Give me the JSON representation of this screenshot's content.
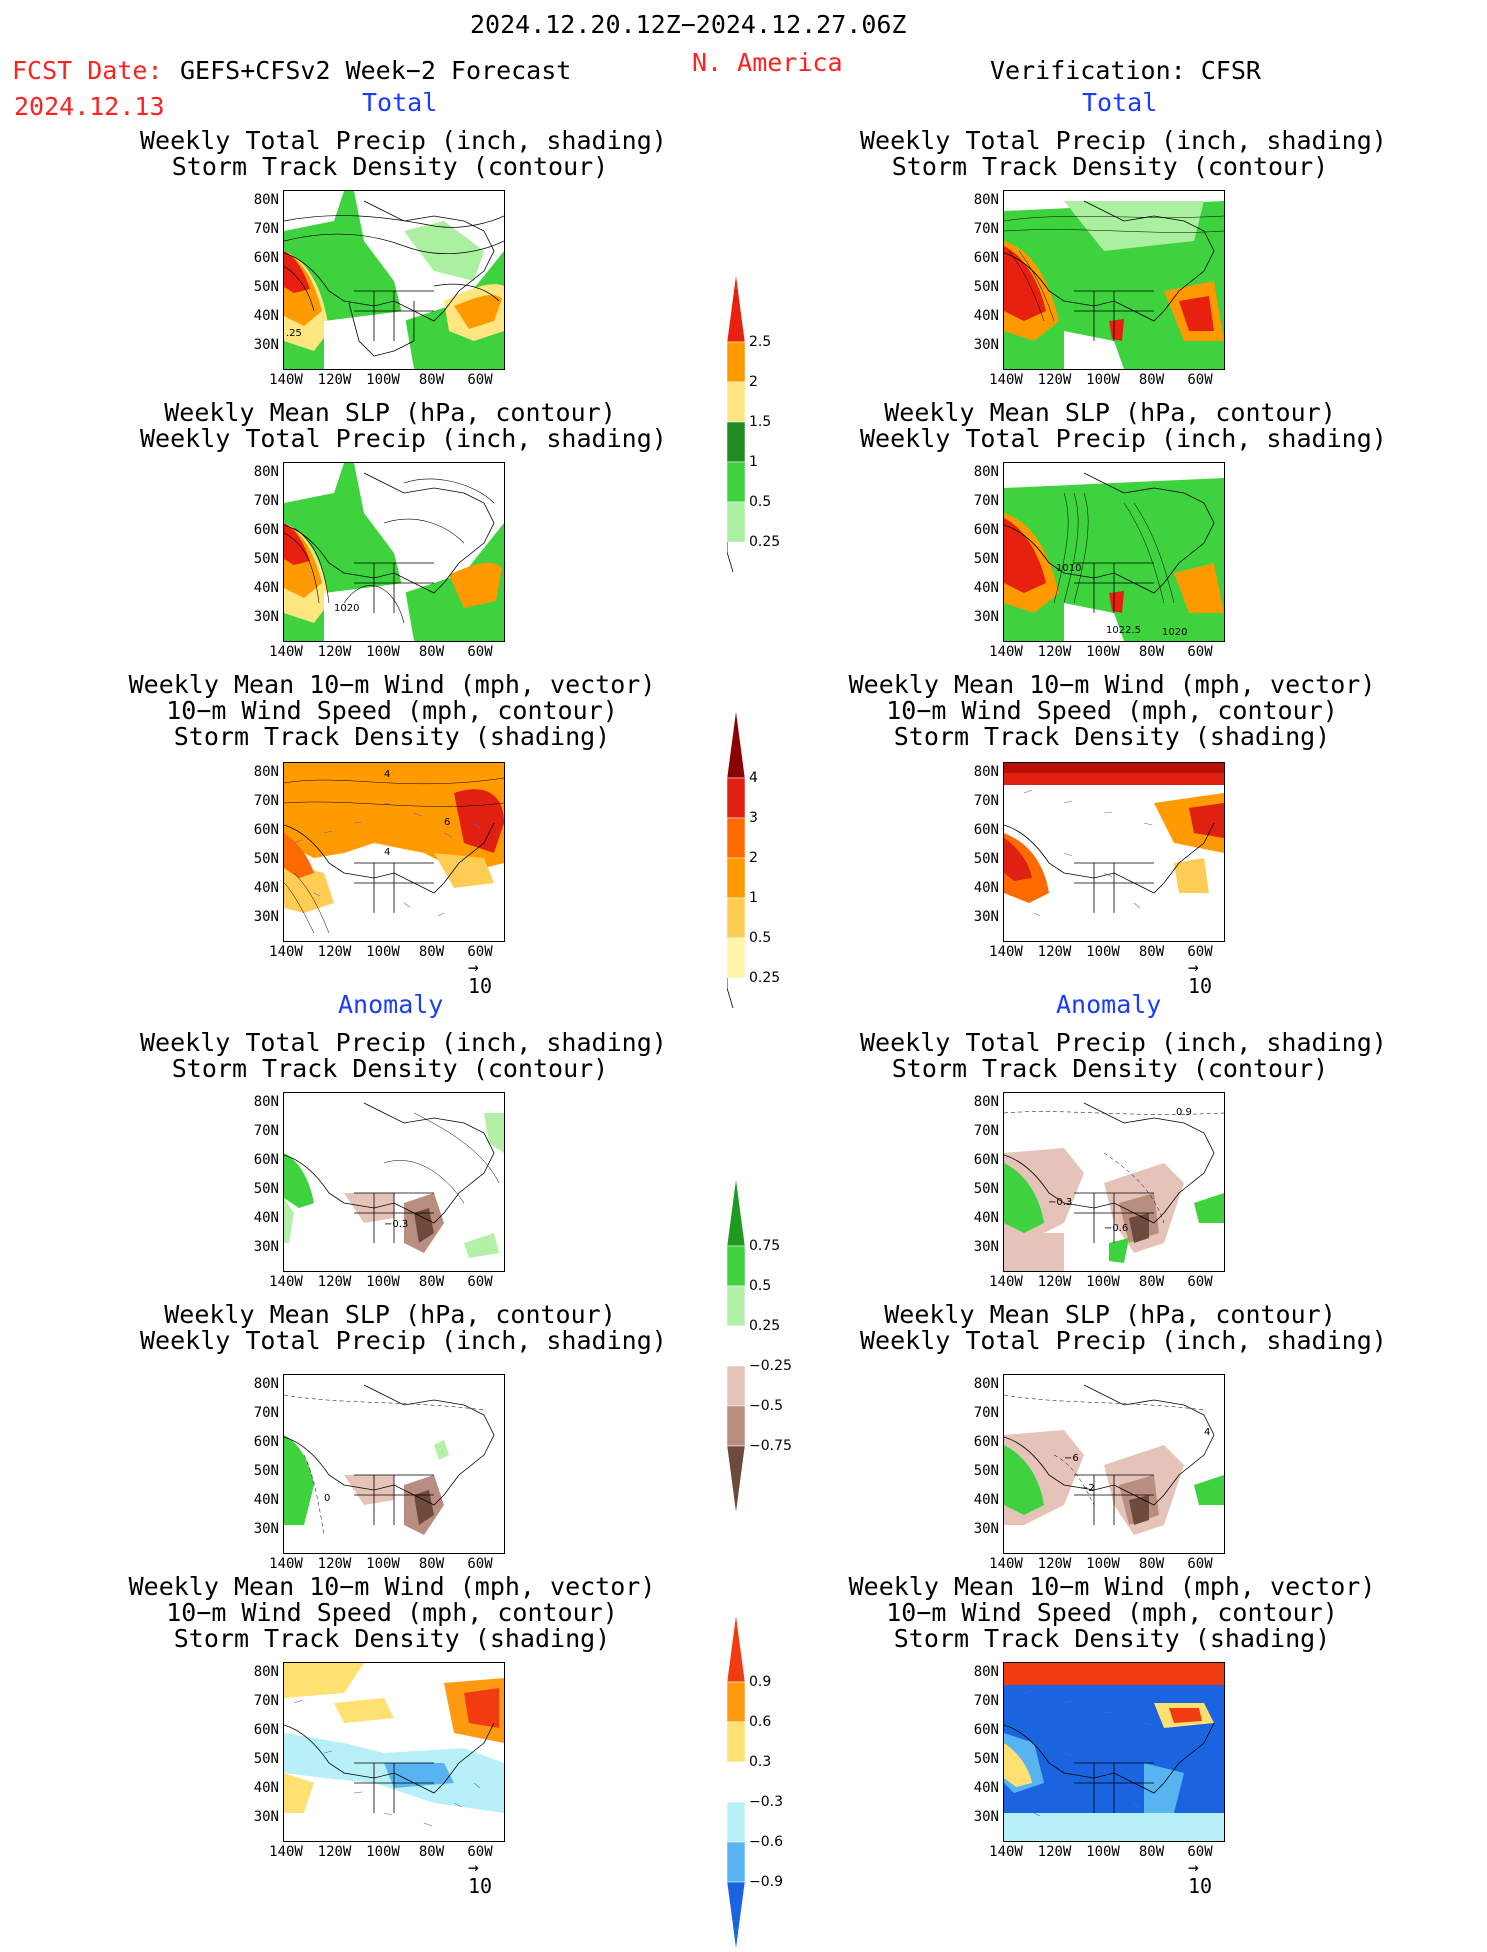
{
  "header": {
    "period": "2024.12.20.12Z−2024.12.27.06Z",
    "fcst_label": "FCST Date:",
    "fcst_model": "GEFS+CFSv2 Week−2 Forecast",
    "fcst_date": "2024.12.13",
    "region": "N. America",
    "verification": "Verification: CFSR"
  },
  "sections": {
    "total": "Total",
    "anomaly": "Anomaly"
  },
  "titles": {
    "precip_track": [
      "Weekly Total Precip (inch, shading)",
      "Storm Track Density (contour)"
    ],
    "slp_precip": [
      "Weekly Mean SLP (hPa, contour)",
      "Weekly Total Precip (inch, shading)"
    ],
    "wind_track": [
      "Weekly Mean 10−m Wind (mph, vector)",
      "10−m Wind Speed (mph, contour)",
      "Storm Track Density (shading)"
    ]
  },
  "axes": {
    "lat_ticks": [
      "80N",
      "70N",
      "60N",
      "50N",
      "40N",
      "30N"
    ],
    "lon_ticks": [
      "140W",
      "120W",
      "100W",
      "80W",
      "60W"
    ]
  },
  "vector_ref": "10",
  "colorbars": {
    "precip_total": {
      "labels": [
        "2.5",
        "2",
        "1.5",
        "1",
        "0.5",
        "0.25"
      ],
      "colors": [
        "#e8200f",
        "#ff9900",
        "#ffe680",
        "#228b22",
        "#3fd23f",
        "#aaf0a0"
      ]
    },
    "track_total": {
      "labels": [
        "4",
        "3",
        "2",
        "1",
        "0.5",
        "0.25"
      ],
      "colors": [
        "#8b0000",
        "#e02010",
        "#ff6a00",
        "#ff9a00",
        "#ffcc55",
        "#fff4aa"
      ]
    },
    "precip_anom": {
      "labels": [
        "0.75",
        "0.5",
        "0.25",
        "−0.25",
        "−0.5",
        "−0.75"
      ],
      "colors": [
        "#1f9a1f",
        "#3fd23f",
        "#b4f0a8",
        "#ffffff",
        "#e6c3b8",
        "#b98e80",
        "#6e4a3c"
      ]
    },
    "track_anom": {
      "labels": [
        "0.9",
        "0.6",
        "0.3",
        "−0.3",
        "−0.6",
        "−0.9"
      ],
      "colors": [
        "#f03c10",
        "#ff9a10",
        "#ffe070",
        "#ffffff",
        "#b8f0f8",
        "#58b4f0",
        "#1a64e0"
      ]
    }
  },
  "map_labels": {
    "fc_total_p1": ".25",
    "fc_total_p2": "1020",
    "fc_total_w": [
      "4",
      "6",
      "4"
    ],
    "ob_total_p2": [
      "1010",
      "1022.5",
      "1020"
    ],
    "fc_anom_p1": "−0.3",
    "fc_anom_p2": "0",
    "ob_anom_p1": [
      "0.9",
      "−0.3",
      "−0.6"
    ],
    "ob_anom_p2": [
      "−6",
      "−2",
      "4"
    ]
  }
}
